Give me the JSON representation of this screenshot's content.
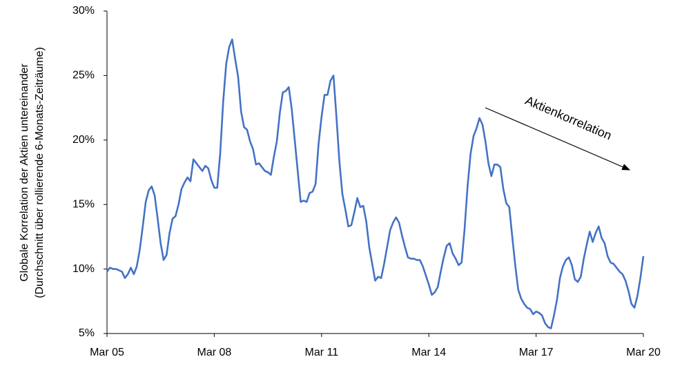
{
  "chart_data": {
    "type": "line",
    "y_label": [
      "Globale Korrelation der Aktien untereinander",
      "(Durchschnitt über rollierende 6-Monats-Zeiträume)"
    ],
    "annotation": "Aktienkorrelation",
    "categories": [
      "Mar 05",
      null,
      null,
      null,
      null,
      null,
      null,
      null,
      null,
      null,
      null,
      null,
      null,
      null,
      null,
      null,
      null,
      null,
      null,
      null,
      null,
      null,
      null,
      null,
      null,
      null,
      null,
      null,
      null,
      null,
      null,
      null,
      null,
      null,
      null,
      null,
      "Mar 08",
      null,
      null,
      null,
      null,
      null,
      null,
      null,
      null,
      null,
      null,
      null,
      null,
      null,
      null,
      null,
      null,
      null,
      null,
      null,
      null,
      null,
      null,
      null,
      null,
      null,
      null,
      null,
      null,
      null,
      null,
      null,
      null,
      null,
      null,
      null,
      "Mar 11",
      null,
      null,
      null,
      null,
      null,
      null,
      null,
      null,
      null,
      null,
      null,
      null,
      null,
      null,
      null,
      null,
      null,
      null,
      null,
      null,
      null,
      null,
      null,
      null,
      null,
      null,
      null,
      null,
      null,
      null,
      null,
      null,
      null,
      null,
      null,
      "Mar 14",
      null,
      null,
      null,
      null,
      null,
      null,
      null,
      null,
      null,
      null,
      null,
      null,
      null,
      null,
      null,
      null,
      null,
      null,
      null,
      null,
      null,
      null,
      null,
      null,
      null,
      null,
      null,
      null,
      null,
      null,
      null,
      null,
      null,
      null,
      null,
      "Mar 17",
      null,
      null,
      null,
      null,
      null,
      null,
      null,
      null,
      null,
      null,
      null,
      null,
      null,
      null,
      null,
      null,
      null,
      null,
      null,
      null,
      null,
      null,
      null,
      null,
      null,
      null,
      null,
      null,
      null,
      null,
      null,
      null,
      null,
      null,
      null,
      "Mar 20"
    ],
    "series": [
      {
        "name": "Aktienkorrelation",
        "color": "#4472c4",
        "values": [
          9.8,
          10.1,
          10.0,
          10.0,
          9.9,
          9.8,
          9.3,
          9.6,
          10.1,
          9.6,
          10.2,
          11.5,
          13.3,
          15.2,
          16.1,
          16.4,
          15.7,
          13.9,
          12.0,
          10.7,
          11.1,
          12.8,
          13.9,
          14.1,
          15.0,
          16.2,
          16.7,
          17.1,
          16.8,
          18.5,
          18.2,
          17.9,
          17.6,
          18.0,
          17.8,
          16.9,
          16.3,
          16.3,
          19.0,
          23.0,
          25.9,
          27.2,
          27.8,
          26.3,
          24.9,
          22.2,
          21.0,
          20.8,
          19.9,
          19.3,
          18.1,
          18.2,
          17.9,
          17.6,
          17.5,
          17.3,
          18.7,
          19.9,
          22.1,
          23.7,
          23.8,
          24.1,
          22.4,
          20.0,
          17.6,
          15.2,
          15.3,
          15.2,
          15.9,
          16.0,
          16.6,
          19.7,
          21.8,
          23.5,
          23.5,
          24.6,
          25.0,
          21.8,
          18.3,
          15.8,
          14.6,
          13.3,
          13.4,
          14.4,
          15.5,
          14.8,
          14.9,
          13.7,
          11.7,
          10.4,
          9.1,
          9.4,
          9.3,
          10.4,
          11.7,
          13.0,
          13.6,
          14.0,
          13.6,
          12.6,
          11.7,
          10.9,
          10.8,
          10.8,
          10.7,
          10.7,
          10.2,
          9.5,
          8.8,
          8.0,
          8.2,
          8.6,
          9.8,
          10.9,
          11.8,
          12.0,
          11.2,
          10.8,
          10.3,
          10.5,
          13.1,
          16.4,
          18.9,
          20.3,
          20.9,
          21.7,
          21.2,
          19.9,
          18.2,
          17.2,
          18.1,
          18.1,
          17.9,
          16.2,
          15.1,
          14.8,
          12.5,
          10.3,
          8.4,
          7.7,
          7.3,
          7.0,
          6.9,
          6.5,
          6.7,
          6.6,
          6.4,
          5.8,
          5.5,
          5.4,
          6.4,
          7.6,
          9.3,
          10.2,
          10.7,
          10.9,
          10.3,
          9.2,
          9.0,
          9.4,
          10.8,
          11.9,
          12.9,
          12.1,
          12.8,
          13.3,
          12.4,
          12.0,
          11.0,
          10.5,
          10.4,
          10.1,
          9.8,
          9.6,
          9.1,
          8.3,
          7.3,
          7.0,
          7.9,
          9.3,
          11.0
        ]
      }
    ],
    "ylim": [
      5,
      30
    ],
    "yticks": [
      {
        "value": 5,
        "label": "5%"
      },
      {
        "value": 10,
        "label": "10%"
      },
      {
        "value": 15,
        "label": "15%"
      },
      {
        "value": 20,
        "label": "20%"
      },
      {
        "value": 25,
        "label": "25%"
      },
      {
        "value": 30,
        "label": "30%"
      }
    ],
    "grid": false
  }
}
